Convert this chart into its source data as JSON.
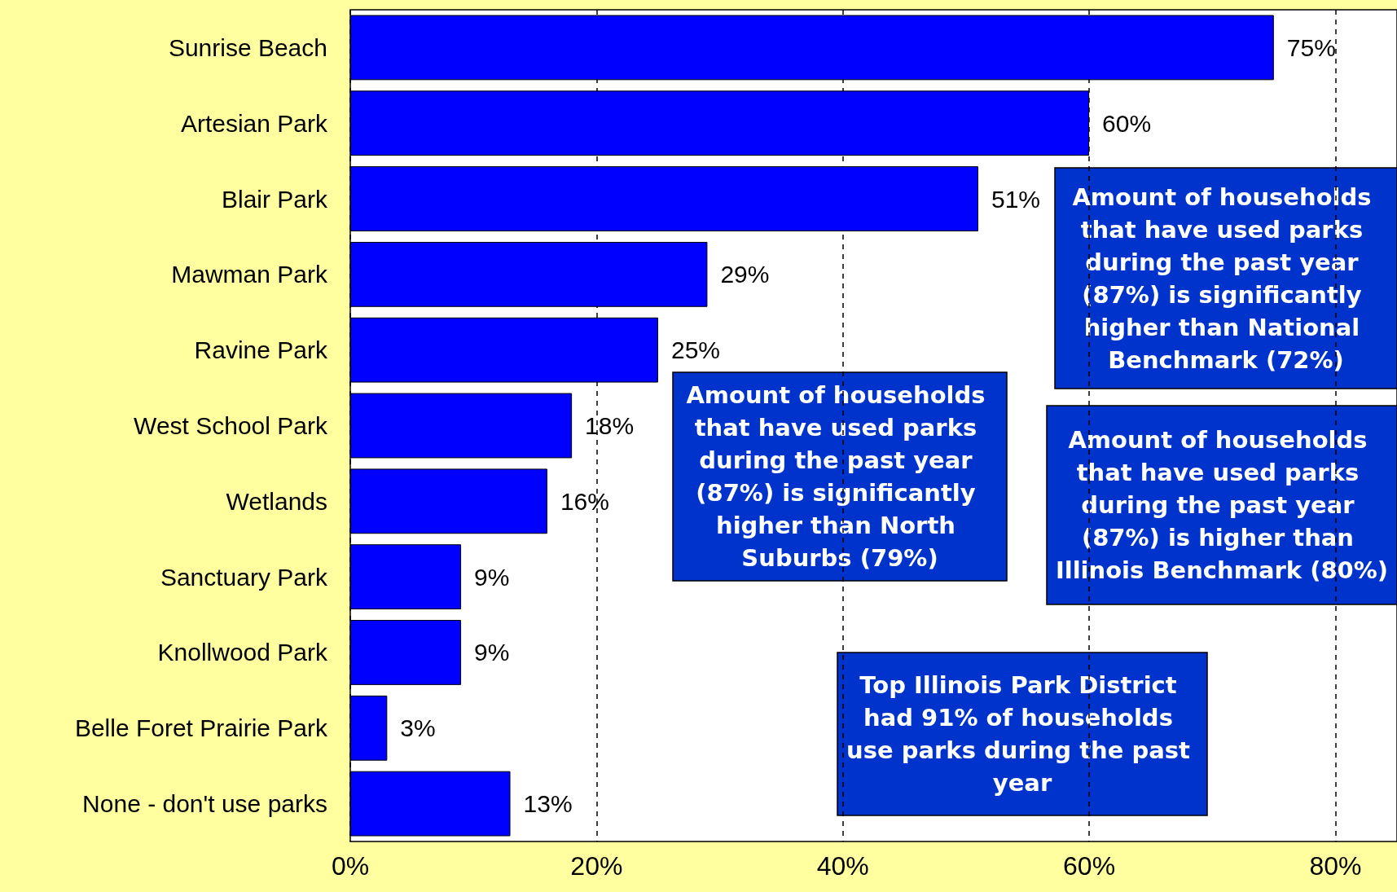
{
  "chart_data": {
    "type": "bar",
    "orientation": "horizontal",
    "categories": [
      "Sunrise Beach",
      "Artesian Park",
      "Blair Park",
      "Mawman Park",
      "Ravine Park",
      "West School Park",
      "Wetlands",
      "Sanctuary Park",
      "Knollwood Park",
      "Belle Foret Prairie Park",
      "None - don't use parks"
    ],
    "values": [
      75,
      60,
      51,
      29,
      25,
      18,
      16,
      9,
      9,
      3,
      13
    ],
    "value_labels": [
      "75%",
      "60%",
      "51%",
      "29%",
      "25%",
      "18%",
      "16%",
      "9%",
      "9%",
      "3%",
      "13%"
    ],
    "color": "#0000ff",
    "xlim": [
      0,
      85
    ],
    "xticks": [
      {
        "value": 0,
        "label": "0%"
      },
      {
        "value": 20,
        "label": "20%"
      },
      {
        "value": 40,
        "label": "40%"
      },
      {
        "value": 60,
        "label": "60%"
      },
      {
        "value": 80,
        "label": "80%"
      }
    ],
    "grid": "x",
    "annotations": [
      "Amount of households that have used parks during the past year (87%) is significantly higher than National Benchmark (72%)",
      "Amount of households that have used parks during the past year (87%) is significantly higher than North Suburbs (79%)",
      "Amount of households that have used parks during the past year (87%) is higher than Illinois Benchmark (80%)",
      "Top Illinois Park District had 91% of households use parks during the past year"
    ]
  }
}
